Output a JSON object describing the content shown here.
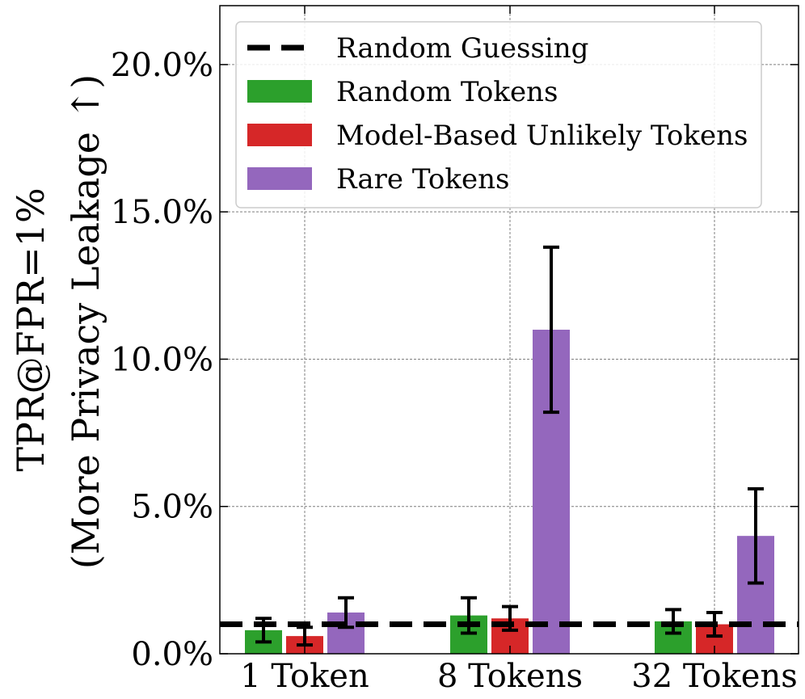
{
  "chart_data": {
    "type": "bar",
    "categories": [
      "1 Token",
      "8 Tokens",
      "32 Tokens"
    ],
    "series": [
      {
        "name": "Random Tokens",
        "color": "#2ca02c",
        "values": [
          0.8,
          1.3,
          1.1
        ],
        "errors": [
          0.4,
          0.6,
          0.4
        ]
      },
      {
        "name": "Model-Based Unlikely Tokens",
        "color": "#d62728",
        "values": [
          0.6,
          1.2,
          1.0
        ],
        "errors": [
          0.3,
          0.4,
          0.4
        ]
      },
      {
        "name": "Rare Tokens",
        "color": "#9467bd",
        "values": [
          1.4,
          11.0,
          4.0
        ],
        "errors": [
          0.5,
          2.8,
          1.6
        ]
      }
    ],
    "reference_line": {
      "name": "Random Guessing",
      "value": 1.0,
      "style": "dashed",
      "color": "#000000"
    },
    "ylim": [
      0,
      22
    ],
    "yticks": [
      0,
      5,
      10,
      15,
      20
    ],
    "ytick_labels": [
      "0.0%",
      "5.0%",
      "10.0%",
      "15.0%",
      "20.0%"
    ],
    "ylabel_line1": "TPR@FPR=1%",
    "ylabel_line2": "(More Privacy Leakage ↑)",
    "xlabel": "",
    "title": "",
    "grid": true,
    "legend_position": "top-left"
  }
}
